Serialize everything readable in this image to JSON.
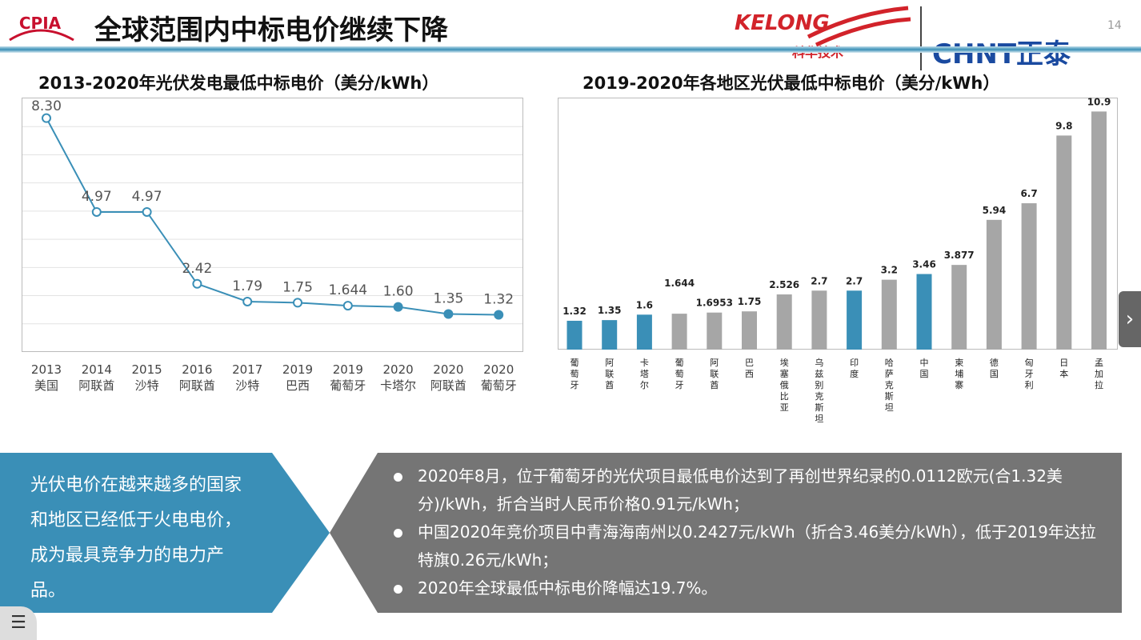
{
  "header": {
    "logo_text": "CPIA",
    "title": "全球范围内中标电价继续下降",
    "partner1": "KELONG",
    "partner1_sub": "科华技术",
    "partner2": "CHNT正泰",
    "page_number": "14"
  },
  "chart_data": [
    {
      "type": "line",
      "title": "2013-2020年光伏发电最低中标电价（美分/kWh）",
      "categories": [
        [
          "2013",
          "美国"
        ],
        [
          "2014",
          "阿联酋"
        ],
        [
          "2015",
          "沙特"
        ],
        [
          "2016",
          "阿联酋"
        ],
        [
          "2017",
          "沙特"
        ],
        [
          "2019",
          "巴西"
        ],
        [
          "2019",
          "葡萄牙"
        ],
        [
          "2020",
          "卡塔尔"
        ],
        [
          "2020",
          "阿联酋"
        ],
        [
          "2020",
          "葡萄牙"
        ]
      ],
      "values": [
        8.3,
        4.97,
        4.97,
        2.42,
        1.79,
        1.75,
        1.644,
        1.6,
        1.35,
        1.32
      ],
      "labels": [
        "8.30",
        "4.97",
        "4.97",
        "2.42",
        "1.79",
        "1.75",
        "1.644",
        "1.60",
        "1.35",
        "1.32"
      ],
      "ylim": [
        0,
        9
      ],
      "grid": true,
      "color": "#3a8fb7"
    },
    {
      "type": "bar",
      "title": "2019-2020年各地区光伏最低中标电价（美分/kWh）",
      "categories": [
        "葡萄牙",
        "阿联酋",
        "卡塔尔",
        "葡萄牙",
        "阿联酋",
        "巴西",
        "埃塞俄比亚",
        "乌兹别克斯坦",
        "印度",
        "哈萨克斯坦",
        "中国",
        "柬埔寨",
        "德国",
        "匈牙利",
        "日本",
        "孟加拉"
      ],
      "values": [
        1.32,
        1.35,
        1.6,
        1.644,
        1.6953,
        1.75,
        2.526,
        2.7,
        2.7,
        3.2,
        3.46,
        3.877,
        5.94,
        6.7,
        9.8,
        10.9
      ],
      "labels": [
        "1.32",
        "1.35",
        "1.6",
        "1.644",
        "1.6953",
        "1.75",
        "2.526",
        "2.7",
        "2.7",
        "3.2",
        "3.46",
        "3.877",
        "5.94",
        "6.7",
        "9.8",
        "10.9"
      ],
      "highlight": [
        true,
        true,
        true,
        false,
        false,
        false,
        false,
        false,
        true,
        false,
        true,
        false,
        false,
        false,
        false,
        false
      ],
      "ylim": [
        0,
        11.5
      ],
      "colors": {
        "highlight": "#3a8fb7",
        "normal": "#a6a6a6"
      }
    }
  ],
  "summary": {
    "left_text": "光伏电价在越来越多的国家和地区已经低于火电电价，成为最具竞争力的电力产品。",
    "bullets": [
      "2020年8月，位于葡萄牙的光伏项目最低电价达到了再创世界纪录的0.0112欧元(合1.32美分)/kWh，折合当时人民币价格0.91元/kWh；",
      "中国2020年竞价项目中青海海南州以0.2427元/kWh（折合3.46美分/kWh），低于2019年达拉特旗0.26元/kWh；",
      "2020年全球最低中标电价降幅达19.7%。"
    ]
  },
  "nav": {
    "next_icon": "chevron-right-icon",
    "menu_icon": "menu-icon"
  }
}
